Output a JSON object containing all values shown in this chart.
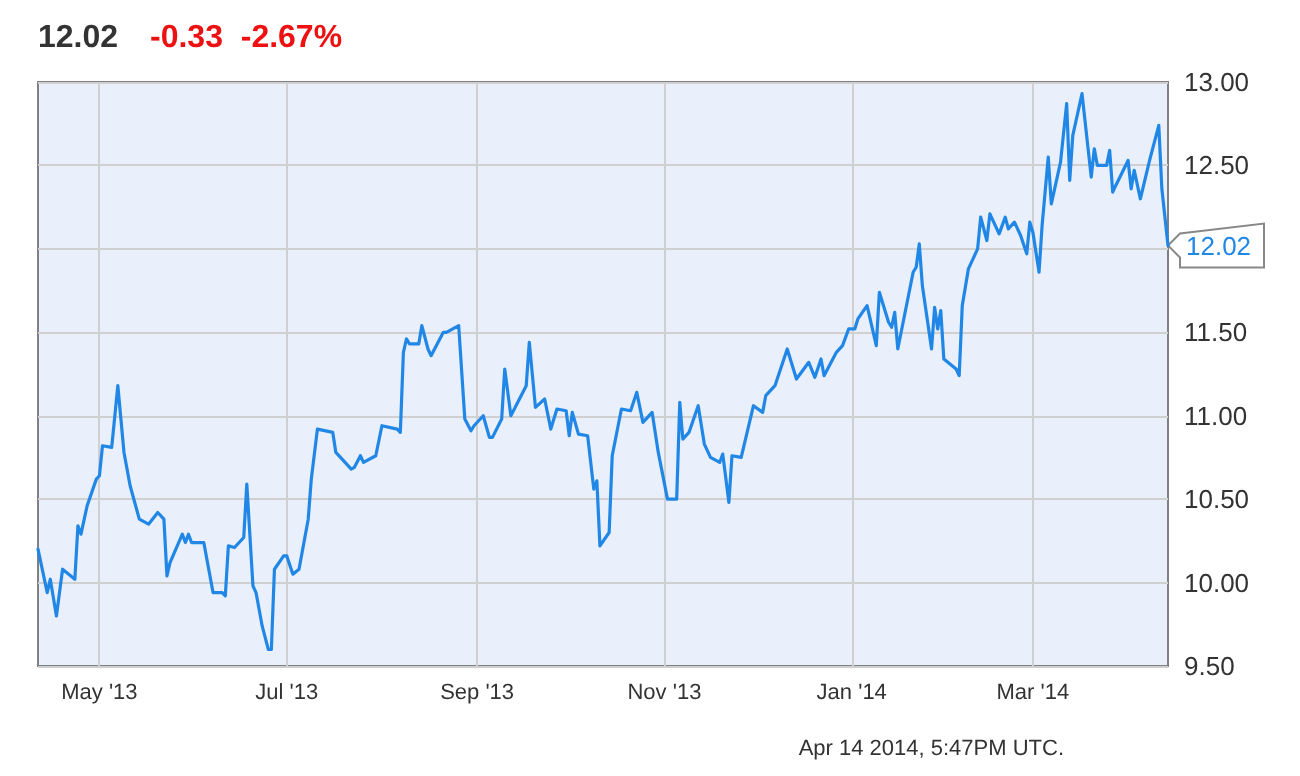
{
  "chart_data": {
    "type": "line",
    "title": "12.02",
    "subtitle": "-0.33  -2.67%",
    "annotations": [
      {
        "text": "12.02",
        "x": "2014-04-14",
        "y": 12.02
      },
      "Apr 14 2014, 5:47PM UTC."
    ],
    "xlim": [
      "2013-04-11",
      "2014-04-14"
    ],
    "xticks": [
      {
        "value": "2013-05-01",
        "label": "May '13"
      },
      {
        "value": "2013-07-01",
        "label": "Jul '13"
      },
      {
        "value": "2013-09-01",
        "label": "Sep '13"
      },
      {
        "value": "2013-11-01",
        "label": "Nov '13"
      },
      {
        "value": "2014-01-01",
        "label": "Jan '14"
      },
      {
        "value": "2014-03-01",
        "label": "Mar '14"
      }
    ],
    "ylim": [
      9.5,
      13
    ],
    "yticks": [
      {
        "value": 9.5,
        "label": "9.50"
      },
      {
        "value": 10,
        "label": "10.00"
      },
      {
        "value": 10.5,
        "label": "10.50"
      },
      {
        "value": 11,
        "label": "11.00"
      },
      {
        "value": 11.5,
        "label": "11.50"
      },
      {
        "value": 12,
        "label": null
      },
      {
        "value": 12.5,
        "label": "12.50"
      },
      {
        "value": 13,
        "label": "13.00"
      }
    ],
    "grid": true,
    "marker": "none",
    "line_style": "solid",
    "series": [
      {
        "color": "#2187e7",
        "x": [
          "2013-04-11",
          "2013-04-14",
          "2013-04-15",
          "2013-04-17",
          "2013-04-19",
          "2013-04-23",
          "2013-04-24",
          "2013-04-25",
          "2013-04-27",
          "2013-04-30",
          "2013-05-01",
          "2013-05-02",
          "2013-05-05",
          "2013-05-07",
          "2013-05-09",
          "2013-05-11",
          "2013-05-14",
          "2013-05-17",
          "2013-05-20",
          "2013-05-22",
          "2013-05-23",
          "2013-05-24",
          "2013-05-28",
          "2013-05-29",
          "2013-05-30",
          "2013-05-31",
          "2013-06-04",
          "2013-06-05",
          "2013-06-07",
          "2013-06-10",
          "2013-06-11",
          "2013-06-12",
          "2013-06-14",
          "2013-06-17",
          "2013-06-18",
          "2013-06-20",
          "2013-06-21",
          "2013-06-23",
          "2013-06-25",
          "2013-06-26",
          "2013-06-27",
          "2013-06-30",
          "2013-07-01",
          "2013-07-03",
          "2013-07-05",
          "2013-07-08",
          "2013-07-09",
          "2013-07-11",
          "2013-07-16",
          "2013-07-17",
          "2013-07-20",
          "2013-07-22",
          "2013-07-23",
          "2013-07-25",
          "2013-07-26",
          "2013-07-30",
          "2013-08-01",
          "2013-08-06",
          "2013-08-07",
          "2013-08-08",
          "2013-08-09",
          "2013-08-10",
          "2013-08-13",
          "2013-08-14",
          "2013-08-16",
          "2013-08-17",
          "2013-08-21",
          "2013-08-22",
          "2013-08-26",
          "2013-08-28",
          "2013-08-30",
          "2013-08-31",
          "2013-09-03",
          "2013-09-05",
          "2013-09-06",
          "2013-09-09",
          "2013-09-10",
          "2013-09-12",
          "2013-09-17",
          "2013-09-18",
          "2013-09-20",
          "2013-09-23",
          "2013-09-25",
          "2013-09-27",
          "2013-09-30",
          "2013-10-01",
          "2013-10-02",
          "2013-10-04",
          "2013-10-07",
          "2013-10-09",
          "2013-10-10",
          "2013-10-11",
          "2013-10-14",
          "2013-10-15",
          "2013-10-18",
          "2013-10-21",
          "2013-10-23",
          "2013-10-25",
          "2013-10-28",
          "2013-10-30",
          "2013-11-02",
          "2013-11-05",
          "2013-11-06",
          "2013-11-07",
          "2013-11-09",
          "2013-11-12",
          "2013-11-14",
          "2013-11-16",
          "2013-11-19",
          "2013-11-20",
          "2013-11-22",
          "2013-11-23",
          "2013-11-26",
          "2013-11-30",
          "2013-12-03",
          "2013-12-04",
          "2013-12-07",
          "2013-12-11",
          "2013-12-14",
          "2013-12-18",
          "2013-12-20",
          "2013-12-22",
          "2013-12-23",
          "2013-12-27",
          "2013-12-29",
          "2013-12-31",
          "2014-01-02",
          "2014-01-03",
          "2014-01-06",
          "2014-01-09",
          "2014-01-10",
          "2014-01-13",
          "2014-01-14",
          "2014-01-15",
          "2014-01-16",
          "2014-01-21",
          "2014-01-22",
          "2014-01-23",
          "2014-01-24",
          "2014-01-27",
          "2014-01-28",
          "2014-01-29",
          "2014-01-30",
          "2014-01-31",
          "2014-02-04",
          "2014-02-05",
          "2014-02-06",
          "2014-02-08",
          "2014-02-11",
          "2014-02-12",
          "2014-02-14",
          "2014-02-15",
          "2014-02-18",
          "2014-02-20",
          "2014-02-21",
          "2014-02-23",
          "2014-02-25",
          "2014-02-27",
          "2014-02-28",
          "2014-03-01",
          "2014-03-03",
          "2014-03-04",
          "2014-03-06",
          "2014-03-07",
          "2014-03-10",
          "2014-03-12",
          "2014-03-13",
          "2014-03-14",
          "2014-03-17",
          "2014-03-20",
          "2014-03-21",
          "2014-03-22",
          "2014-03-25",
          "2014-03-26",
          "2014-03-27",
          "2014-03-28",
          "2014-04-01",
          "2014-04-02",
          "2014-04-03",
          "2014-04-05",
          "2014-04-08",
          "2014-04-11",
          "2014-04-12",
          "2014-04-14"
        ],
        "values": [
          10.2,
          9.94,
          10.02,
          9.8,
          10.08,
          10.02,
          10.34,
          10.29,
          10.46,
          10.62,
          10.64,
          10.82,
          10.81,
          11.18,
          10.78,
          10.58,
          10.38,
          10.35,
          10.42,
          10.38,
          10.04,
          10.12,
          10.29,
          10.24,
          10.29,
          10.24,
          10.24,
          10.14,
          9.94,
          9.94,
          9.92,
          10.22,
          10.21,
          10.27,
          10.59,
          9.98,
          9.94,
          9.74,
          9.6,
          9.6,
          10.08,
          10.16,
          10.16,
          10.05,
          10.08,
          10.38,
          10.62,
          10.92,
          10.9,
          10.78,
          10.72,
          10.68,
          10.69,
          10.76,
          10.72,
          10.76,
          10.94,
          10.92,
          10.9,
          11.38,
          11.46,
          11.43,
          11.43,
          11.54,
          11.4,
          11.36,
          11.5,
          11.5,
          11.54,
          10.98,
          10.91,
          10.94,
          11.0,
          10.87,
          10.87,
          10.98,
          11.28,
          11.0,
          11.18,
          11.44,
          11.05,
          11.1,
          10.92,
          11.04,
          11.03,
          10.88,
          11.02,
          10.89,
          10.88,
          10.56,
          10.61,
          10.22,
          10.3,
          10.76,
          11.04,
          11.03,
          11.14,
          10.96,
          11.02,
          10.78,
          10.5,
          10.5,
          11.08,
          10.86,
          10.9,
          11.06,
          10.83,
          10.75,
          10.72,
          10.77,
          10.48,
          10.76,
          10.75,
          11.06,
          11.02,
          11.12,
          11.18,
          11.4,
          11.22,
          11.32,
          11.23,
          11.34,
          11.24,
          11.38,
          11.42,
          11.52,
          11.52,
          11.58,
          11.66,
          11.42,
          11.74,
          11.56,
          11.53,
          11.62,
          11.4,
          11.86,
          11.89,
          12.03,
          11.78,
          11.4,
          11.65,
          11.52,
          11.63,
          11.34,
          11.28,
          11.24,
          11.66,
          11.88,
          12.0,
          12.19,
          12.05,
          12.21,
          12.09,
          12.19,
          12.12,
          12.16,
          12.08,
          11.97,
          12.16,
          12.1,
          11.86,
          12.14,
          12.55,
          12.27,
          12.52,
          12.87,
          12.41,
          12.68,
          12.93,
          12.43,
          12.6,
          12.5,
          12.5,
          12.59,
          12.34,
          12.38,
          12.53,
          12.36,
          12.47,
          12.3,
          12.53,
          12.74,
          12.36,
          12.02
        ]
      }
    ]
  }
}
